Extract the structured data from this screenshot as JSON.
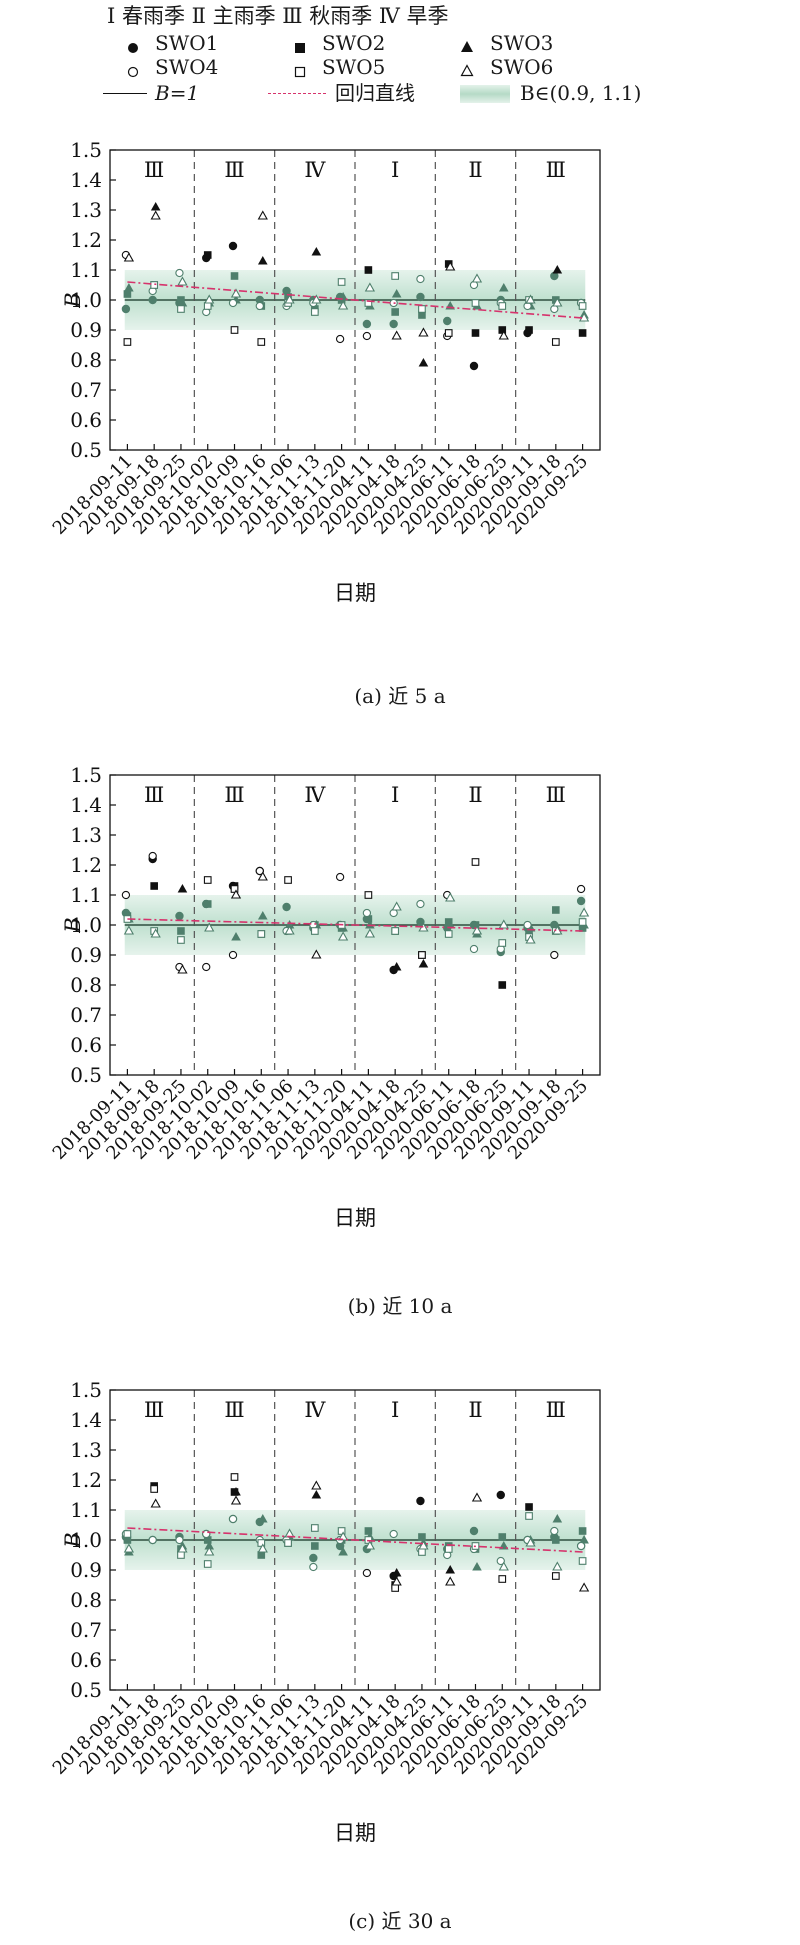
{
  "legend": {
    "seasons_line": "Ⅰ 春雨季  Ⅱ 主雨季  Ⅲ 秋雨季  Ⅳ 旱季",
    "series": [
      {
        "name": "SWO1",
        "marker": "filled-circle"
      },
      {
        "name": "SWO2",
        "marker": "filled-square"
      },
      {
        "name": "SWO3",
        "marker": "filled-triangle"
      },
      {
        "name": "SWO4",
        "marker": "open-circle"
      },
      {
        "name": "SWO5",
        "marker": "open-square"
      },
      {
        "name": "SWO6",
        "marker": "open-triangle"
      }
    ],
    "b1_label": "B=1",
    "regression_label": "回归直线",
    "band_label": "B∈(0.9, 1.1)"
  },
  "colors": {
    "marker": "#111111",
    "marker_in_band": "#4f7f6c",
    "band": "#bfe0cf",
    "regression": "#d6336c",
    "divider": "#555555"
  },
  "chart_data": [
    {
      "type": "scatter",
      "caption": "(a) 近 5 a",
      "xlabel": "日期",
      "ylabel": "B",
      "ylim": [
        0.5,
        1.5
      ],
      "yticks": [
        "0.5",
        "0.6",
        "0.7",
        "0.8",
        "0.9",
        "1.0",
        "1.1",
        "1.2",
        "1.3",
        "1.4",
        "1.5"
      ],
      "categories": [
        "2018-09-11",
        "2018-09-18",
        "2018-09-25",
        "2018-10-02",
        "2018-10-09",
        "2018-10-16",
        "2018-11-06",
        "2018-11-13",
        "2018-11-20",
        "2020-04-11",
        "2020-04-18",
        "2020-04-25",
        "2020-06-11",
        "2020-06-18",
        "2020-06-25",
        "2020-09-11",
        "2020-09-18",
        "2020-09-25"
      ],
      "season_labels": [
        "Ⅲ",
        "Ⅲ",
        "Ⅳ",
        "Ⅰ",
        "Ⅱ",
        "Ⅲ"
      ],
      "season_starts": [
        0,
        3,
        6,
        9,
        12,
        15
      ],
      "band": [
        0.9,
        1.1
      ],
      "regression": [
        1.06,
        0.94
      ],
      "series": [
        {
          "name": "SWO1",
          "values": [
            0.97,
            1.0,
            0.99,
            1.14,
            1.18,
            1.0,
            1.03,
            1.0,
            1.01,
            0.92,
            0.92,
            1.01,
            0.93,
            0.78,
            1.0,
            0.89,
            1.08,
            0.99
          ]
        },
        {
          "name": "SWO2",
          "values": [
            1.02,
            1.05,
            1.0,
            1.15,
            1.08,
            0.98,
            1.01,
            0.97,
            1.0,
            1.1,
            0.96,
            0.95,
            1.12,
            0.89,
            0.9,
            0.9,
            1.0,
            0.89
          ]
        },
        {
          "name": "SWO3",
          "values": [
            1.04,
            1.31,
            0.99,
            0.99,
            1.0,
            1.13,
            1.0,
            1.16,
            1.01,
            0.98,
            1.02,
            0.79,
            0.98,
            0.98,
            1.04,
            0.98,
            1.1,
            0.95
          ]
        },
        {
          "name": "SWO4",
          "values": [
            1.15,
            1.03,
            1.09,
            0.96,
            0.99,
            0.98,
            0.98,
            0.99,
            0.87,
            0.88,
            0.99,
            1.07,
            0.88,
            1.05,
            0.99,
            0.98,
            0.97,
            0.99
          ]
        },
        {
          "name": "SWO5",
          "values": [
            0.86,
            1.05,
            0.97,
            0.98,
            0.9,
            0.86,
            0.99,
            0.96,
            1.06,
            0.99,
            1.08,
            0.97,
            0.89,
            0.99,
            0.98,
            1.0,
            0.86,
            0.98
          ]
        },
        {
          "name": "SWO6",
          "values": [
            1.14,
            1.28,
            1.06,
            1.0,
            1.02,
            1.28,
            1.0,
            1.0,
            0.98,
            1.04,
            0.88,
            0.89,
            1.11,
            1.07,
            0.88,
            1.0,
            0.99,
            0.94
          ]
        }
      ]
    },
    {
      "type": "scatter",
      "caption": "(b) 近 10 a",
      "xlabel": "日期",
      "ylabel": "B",
      "ylim": [
        0.5,
        1.5
      ],
      "yticks": [
        "0.5",
        "0.6",
        "0.7",
        "0.8",
        "0.9",
        "1.0",
        "1.1",
        "1.2",
        "1.3",
        "1.4",
        "1.5"
      ],
      "categories": [
        "2018-09-11",
        "2018-09-18",
        "2018-09-25",
        "2018-10-02",
        "2018-10-09",
        "2018-10-16",
        "2018-11-06",
        "2018-11-13",
        "2018-11-20",
        "2020-04-11",
        "2020-04-18",
        "2020-04-25",
        "2020-06-11",
        "2020-06-18",
        "2020-06-25",
        "2020-09-11",
        "2020-09-18",
        "2020-09-25"
      ],
      "season_labels": [
        "Ⅲ",
        "Ⅲ",
        "Ⅳ",
        "Ⅰ",
        "Ⅱ",
        "Ⅲ"
      ],
      "season_starts": [
        0,
        3,
        6,
        9,
        12,
        15
      ],
      "band": [
        0.9,
        1.1
      ],
      "regression": [
        1.02,
        0.98
      ],
      "series": [
        {
          "name": "SWO1",
          "values": [
            1.04,
            1.22,
            1.03,
            1.07,
            1.13,
            1.18,
            1.06,
            0.99,
            1.0,
            1.02,
            0.85,
            1.01,
            0.99,
            1.0,
            0.91,
            0.99,
            1.0,
            1.08
          ]
        },
        {
          "name": "SWO2",
          "values": [
            1.03,
            1.13,
            0.98,
            1.07,
            1.13,
            0.97,
            0.98,
            1.0,
            0.99,
            1.02,
            0.98,
            0.9,
            1.01,
            1.0,
            0.8,
            0.98,
            1.05,
            0.99
          ]
        },
        {
          "name": "SWO3",
          "values": [
            1.02,
            0.97,
            1.12,
            0.99,
            0.96,
            1.03,
            1.0,
            1.0,
            0.99,
            1.0,
            0.86,
            0.87,
            1.0,
            0.97,
            1.0,
            0.99,
            0.99,
            1.0
          ]
        },
        {
          "name": "SWO4",
          "values": [
            1.1,
            1.23,
            0.86,
            0.86,
            0.9,
            1.18,
            0.98,
            1.0,
            1.16,
            1.04,
            1.04,
            1.07,
            1.1,
            0.92,
            0.92,
            1.0,
            0.9,
            1.12
          ]
        },
        {
          "name": "SWO5",
          "values": [
            1.02,
            0.98,
            0.95,
            1.15,
            1.12,
            0.97,
            1.15,
            0.98,
            1.0,
            1.1,
            0.98,
            0.9,
            0.97,
            1.21,
            0.94,
            0.96,
            0.98,
            1.01
          ]
        },
        {
          "name": "SWO6",
          "values": [
            0.98,
            0.97,
            0.85,
            0.99,
            1.1,
            1.16,
            0.98,
            0.9,
            0.96,
            0.97,
            1.06,
            0.99,
            1.09,
            0.98,
            1.0,
            0.95,
            0.98,
            1.04
          ]
        }
      ]
    },
    {
      "type": "scatter",
      "caption": "(c) 近 30 a",
      "xlabel": "日期",
      "ylabel": "B",
      "ylim": [
        0.5,
        1.5
      ],
      "yticks": [
        "0.5",
        "0.6",
        "0.7",
        "0.8",
        "0.9",
        "1.0",
        "1.1",
        "1.2",
        "1.3",
        "1.4",
        "1.5"
      ],
      "categories": [
        "2018-09-11",
        "2018-09-18",
        "2018-09-25",
        "2018-10-02",
        "2018-10-09",
        "2018-10-16",
        "2018-11-06",
        "2018-11-13",
        "2018-11-20",
        "2020-04-11",
        "2020-04-18",
        "2020-04-25",
        "2020-06-11",
        "2020-06-18",
        "2020-06-25",
        "2020-09-11",
        "2020-09-18",
        "2020-09-25"
      ],
      "season_labels": [
        "Ⅲ",
        "Ⅲ",
        "Ⅳ",
        "Ⅰ",
        "Ⅱ",
        "Ⅲ"
      ],
      "season_starts": [
        0,
        3,
        6,
        9,
        12,
        15
      ],
      "band": [
        0.9,
        1.1
      ],
      "regression": [
        1.04,
        0.96
      ],
      "series": [
        {
          "name": "SWO1",
          "values": [
            1.01,
            1.0,
            1.01,
            1.02,
            1.07,
            1.06,
            1.0,
            0.94,
            0.98,
            0.97,
            0.88,
            1.13,
            0.97,
            1.03,
            1.15,
            1.0,
            1.01,
            0.98
          ]
        },
        {
          "name": "SWO2",
          "values": [
            1.0,
            1.18,
            0.97,
            1.0,
            1.16,
            0.95,
            0.99,
            0.98,
            1.0,
            1.03,
            0.85,
            1.01,
            0.98,
            0.97,
            1.01,
            1.11,
            1.0,
            1.03
          ]
        },
        {
          "name": "SWO3",
          "values": [
            0.96,
            1.12,
            0.98,
            0.98,
            1.16,
            1.07,
            1.01,
            1.15,
            0.96,
            1.01,
            0.89,
            0.99,
            0.9,
            0.91,
            0.98,
            1.0,
            1.07,
            1.0
          ]
        },
        {
          "name": "SWO4",
          "values": [
            1.02,
            1.0,
            1.0,
            1.02,
            1.07,
            1.0,
            1.0,
            0.91,
            1.0,
            0.89,
            1.02,
            0.97,
            0.95,
            0.97,
            0.93,
            1.0,
            1.03,
            0.98
          ]
        },
        {
          "name": "SWO5",
          "values": [
            1.02,
            1.17,
            0.95,
            0.92,
            1.21,
            0.99,
            0.99,
            1.04,
            1.03,
            1.0,
            0.84,
            0.96,
            0.97,
            0.98,
            0.87,
            1.08,
            0.88,
            0.93
          ]
        },
        {
          "name": "SWO6",
          "values": [
            0.97,
            1.12,
            0.97,
            0.96,
            1.13,
            0.97,
            1.02,
            1.18,
            1.01,
            0.98,
            0.86,
            0.98,
            0.86,
            1.14,
            0.91,
            0.99,
            0.91,
            0.84
          ]
        }
      ]
    }
  ]
}
